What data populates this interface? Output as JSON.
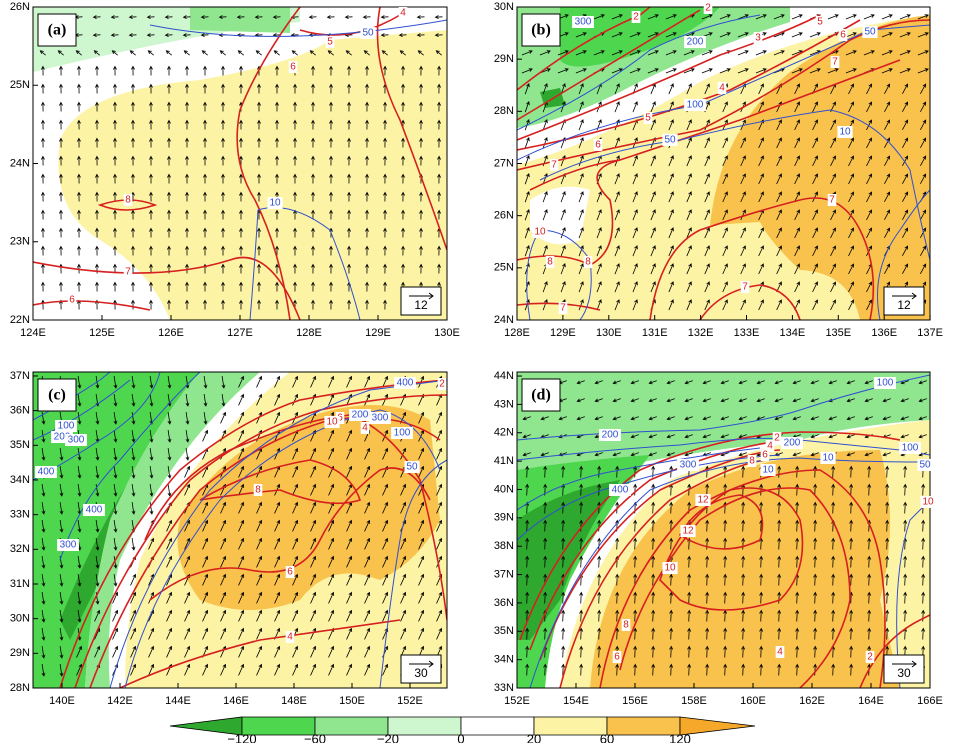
{
  "panels": [
    {
      "label": "(a)",
      "x_ticks": [
        "124E",
        "125E",
        "126E",
        "127E",
        "128E",
        "129E",
        "130E"
      ],
      "y_ticks": [
        "22N",
        "23N",
        "24N",
        "25N",
        "26N"
      ],
      "reference_vector": "12",
      "contour_labels": [
        "4",
        "50",
        "5",
        "6",
        "8",
        "10",
        "7",
        "6"
      ]
    },
    {
      "label": "(b)",
      "x_ticks": [
        "128E",
        "129E",
        "130E",
        "131E",
        "132E",
        "133E",
        "134E",
        "135E",
        "136E",
        "137E"
      ],
      "y_ticks": [
        "24N",
        "25N",
        "26N",
        "27N",
        "28N",
        "29N",
        "30N"
      ],
      "reference_vector": "12",
      "contour_labels": [
        "2",
        "2",
        "300",
        "3",
        "200",
        "5",
        "6",
        "50",
        "7",
        "4",
        "100",
        "5",
        "50",
        "6",
        "10",
        "7",
        "7",
        "10",
        "8",
        "8",
        "7",
        "7"
      ]
    },
    {
      "label": "(c)",
      "x_ticks": [
        "140E",
        "142E",
        "144E",
        "146E",
        "148E",
        "150E",
        "152E"
      ],
      "y_ticks": [
        "28N",
        "29N",
        "30N",
        "31N",
        "32N",
        "33N",
        "34N",
        "35N",
        "36N",
        "37N"
      ],
      "reference_vector": "30",
      "contour_labels": [
        "400",
        "300",
        "200",
        "2",
        "4",
        "6",
        "10",
        "100",
        "50",
        "100",
        "200",
        "300",
        "400",
        "400",
        "300",
        "8",
        "6",
        "4"
      ]
    },
    {
      "label": "(d)",
      "x_ticks": [
        "152E",
        "154E",
        "156E",
        "158E",
        "160E",
        "162E",
        "164E",
        "166E"
      ],
      "y_ticks": [
        "33N",
        "34N",
        "35N",
        "36N",
        "37N",
        "38N",
        "39N",
        "40N",
        "41N",
        "42N",
        "43N",
        "44N"
      ],
      "reference_vector": "30",
      "contour_labels": [
        "100",
        "200",
        "200",
        "300",
        "400",
        "2",
        "4",
        "6",
        "8",
        "10",
        "10",
        "100",
        "50",
        "10",
        "12",
        "12",
        "10",
        "8",
        "6",
        "4",
        "2"
      ]
    }
  ],
  "colorbar": {
    "labels": [
      "−120",
      "−60",
      "−20",
      "0",
      "20",
      "60",
      "120"
    ],
    "colors": [
      "#2fa82f",
      "#4fd64f",
      "#8fe68f",
      "#cff7cf",
      "#ffffff",
      "#fdf3a4",
      "#f8c24c",
      "#f5a82a"
    ]
  }
}
